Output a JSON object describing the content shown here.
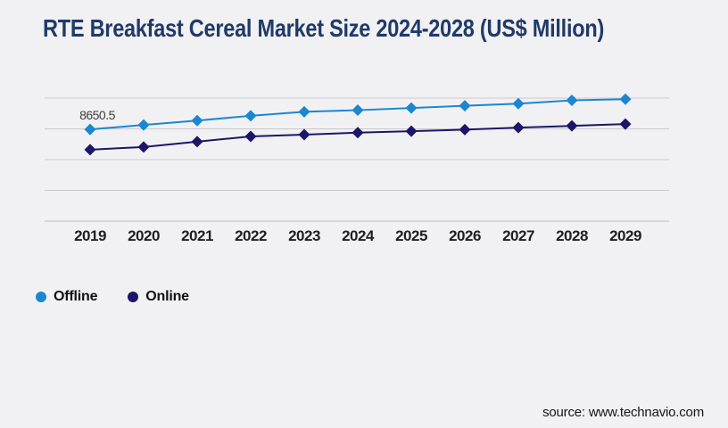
{
  "page": {
    "title": "RTE Breakfast Cereal Market Size 2024-2028 (US$ Million)",
    "title_color": "#203a68",
    "background_color": "#f1f1f3",
    "source": "source: www.technavio.com"
  },
  "chart_data": {
    "type": "line",
    "title": "RTE Breakfast Cereal Market Size 2024-2028 (US$ Million)",
    "categories": [
      "2019",
      "2020",
      "2021",
      "2022",
      "2023",
      "2024",
      "2025",
      "2026",
      "2027",
      "2028",
      "2029"
    ],
    "series": [
      {
        "name": "Offline",
        "color": "#1c86d2",
        "marker": "diamond",
        "values": [
          8650.5,
          9065,
          9480,
          9930,
          10310,
          10460,
          10660,
          10880,
          11070,
          11390,
          11490
        ]
      },
      {
        "name": "Online",
        "color": "#1b1668",
        "marker": "diamond",
        "values": [
          6740,
          6990,
          7490,
          7990,
          8150,
          8340,
          8480,
          8630,
          8820,
          8980,
          9150
        ]
      }
    ],
    "data_labels": [
      {
        "series": "Offline",
        "category": "2019",
        "text": "8650.5"
      }
    ],
    "xlabel": "",
    "ylabel": "",
    "ylim": [
      0,
      11600
    ],
    "y_axis_labels_visible": false,
    "gridline_count": 5,
    "gridline_color": "#cacacd",
    "axis_line_color": "#bfbfc3",
    "tick_label_color": "#1f1f1f",
    "data_label_color": "#3c3c3c",
    "legend_position": "bottom-left",
    "grid": "horizontal-only"
  }
}
